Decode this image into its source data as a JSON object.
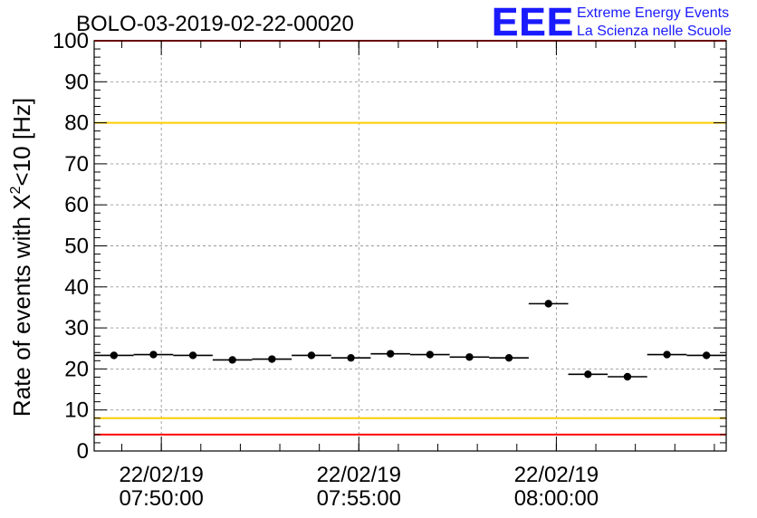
{
  "chart_data": {
    "type": "scatter",
    "title": "BOLO-03-2019-02-22-00020",
    "ylabel": {
      "before": "Rate of events with X",
      "sup": "2",
      "after": "<10 [Hz]"
    },
    "xlabel": "",
    "ylim": [
      0,
      100
    ],
    "y_ticks": [
      0,
      10,
      20,
      30,
      40,
      50,
      60,
      70,
      80,
      90,
      100
    ],
    "x_axis": {
      "start_minute": 0,
      "end_minute": 16,
      "tick_labels": [
        {
          "minute": 1.7,
          "date": "22/02/19",
          "time": "07:50:00"
        },
        {
          "minute": 6.7,
          "date": "22/02/19",
          "time": "07:55:00"
        },
        {
          "minute": 11.7,
          "date": "22/02/19",
          "time": "08:00:00"
        }
      ]
    },
    "grid": true,
    "series": [
      {
        "points": [
          {
            "x": 0.5,
            "y": 23.3
          },
          {
            "x": 1.5,
            "y": 23.5
          },
          {
            "x": 2.5,
            "y": 23.3
          },
          {
            "x": 3.5,
            "y": 22.2
          },
          {
            "x": 4.5,
            "y": 22.4
          },
          {
            "x": 5.5,
            "y": 23.3
          },
          {
            "x": 6.5,
            "y": 22.7
          },
          {
            "x": 7.5,
            "y": 23.7
          },
          {
            "x": 8.5,
            "y": 23.5
          },
          {
            "x": 9.5,
            "y": 22.9
          },
          {
            "x": 10.5,
            "y": 22.7
          },
          {
            "x": 11.5,
            "y": 35.9
          },
          {
            "x": 12.5,
            "y": 18.7
          },
          {
            "x": 13.5,
            "y": 18.1
          },
          {
            "x": 14.5,
            "y": 23.5
          },
          {
            "x": 15.5,
            "y": 23.3
          }
        ],
        "color": "#000000"
      }
    ],
    "reference_lines": [
      {
        "y": 100,
        "color": "#ff0000"
      },
      {
        "y": 80,
        "color": "#ffcc00"
      },
      {
        "y": 8,
        "color": "#ffcc00"
      },
      {
        "y": 4,
        "color": "#ff0000"
      }
    ]
  },
  "logo": {
    "text": "EEE",
    "line1": "Extreme Energy Events",
    "line2": "La Scienza nelle Scuole",
    "color": "#1a1aff"
  }
}
